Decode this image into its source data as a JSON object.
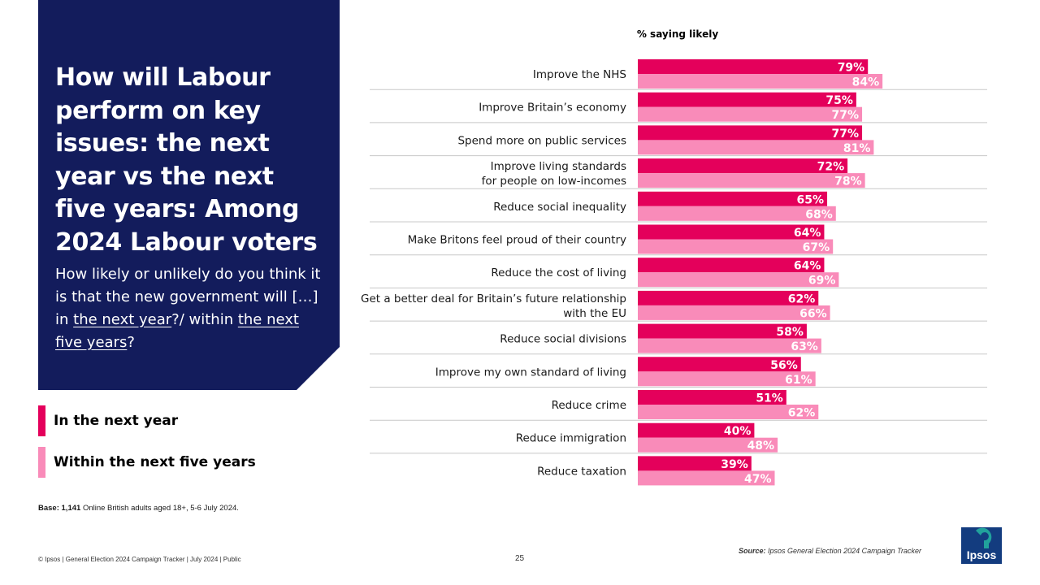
{
  "title": "How will Labour perform on key issues: the next year vs the next five years: Among 2024 Labour voters",
  "question": {
    "pre": "How likely or unlikely do you think it is that the new government will […] in ",
    "u1": "the next year",
    "mid": "?/ within ",
    "u2": "the next five years",
    "post": "?"
  },
  "legend": [
    {
      "label": "In the next year",
      "color": "#e4005b"
    },
    {
      "label": "Within the next five years",
      "color": "#f98bb9"
    }
  ],
  "base": {
    "label": "Base:",
    "value": "1,141",
    "text": "Online British adults aged 18+,  5-6 July 2024."
  },
  "footer": "© Ipsos | General Election 2024 Campaign Tracker | July 2024 | Public",
  "page_number": "25",
  "source": {
    "label": "Source:",
    "text": "Ipsos General Election 2024 Campaign Tracker"
  },
  "logo_text": "Ipsos",
  "colors": {
    "series1": "#e4005b",
    "series2": "#f98bb9",
    "navy": "#131c5c",
    "logo": "#133c7f"
  },
  "chart_data": {
    "type": "bar",
    "orientation": "horizontal",
    "title": "% saying likely",
    "categories": [
      [
        "Improve the NHS"
      ],
      [
        "Improve Britain’s economy"
      ],
      [
        "Spend more on public services"
      ],
      [
        "Improve living standards",
        "for people on low-incomes"
      ],
      [
        "Reduce social inequality"
      ],
      [
        "Make Britons feel proud of their country"
      ],
      [
        "Reduce the cost of living"
      ],
      [
        "Get a better deal for Britain’s future relationship",
        "with the EU"
      ],
      [
        "Reduce social divisions"
      ],
      [
        "Improve my own standard of living"
      ],
      [
        "Reduce crime"
      ],
      [
        "Reduce immigration"
      ],
      [
        "Reduce taxation"
      ]
    ],
    "series": [
      {
        "name": "In the next year",
        "values": [
          79,
          75,
          77,
          72,
          65,
          64,
          64,
          62,
          58,
          56,
          51,
          40,
          39
        ]
      },
      {
        "name": "Within the next five years",
        "values": [
          84,
          77,
          81,
          78,
          68,
          67,
          69,
          66,
          63,
          61,
          62,
          48,
          47
        ]
      }
    ],
    "value_suffix": "%",
    "xlim": [
      0,
      100
    ]
  }
}
